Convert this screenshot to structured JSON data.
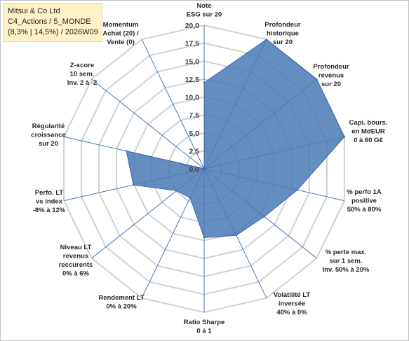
{
  "title_box": {
    "line1": "Mitsui & Co Ltd",
    "line2": "C4_Actions / 5_MONDE",
    "line3": "(8,3% | 14,5%) / 2026W09"
  },
  "colors": {
    "fill": "#4a7ab5",
    "stroke": "#3a66a8",
    "spoke": "#4a7ab5",
    "grid": "#d0d0d0",
    "title_bg": "#fff2c6"
  },
  "chart_data": {
    "type": "radar",
    "rmin": 0,
    "rmax": 20,
    "tick_step": 2.5,
    "tick_labels": [
      "0,0",
      "2,5",
      "5,0",
      "7,5",
      "10,0",
      "12,5",
      "15,0",
      "17,5",
      "20,0"
    ],
    "axes": [
      {
        "label": [
          "Note",
          "ESG sur 20"
        ],
        "value": 12
      },
      {
        "label": [
          "Profondeur",
          "historique",
          "sur 20"
        ],
        "value": 20
      },
      {
        "label": [
          "Profondeur",
          "revenus",
          "sur 20"
        ],
        "value": 20
      },
      {
        "label": [
          "Capi. bours.",
          "en MdEUR",
          "0 à 60 G€"
        ],
        "value": 20
      },
      {
        "label": [
          "% perfo 1A",
          "positive",
          "50% à 80%"
        ],
        "value": 13.3
      },
      {
        "label": [
          "% perte max.",
          "sur 1 sem.",
          "Inv. 50% à 20%"
        ],
        "value": 10.7
      },
      {
        "label": [
          "Volatilité LT",
          "inversée",
          "40% à 0%"
        ],
        "value": 10.3
      },
      {
        "label": [
          "Ratio Sharpe",
          "0 à 1"
        ],
        "value": 9.6
      },
      {
        "label": [
          "Rendement LT",
          "0% à 20%"
        ],
        "value": 4.5
      },
      {
        "label": [
          "Niveau LT",
          "revenus",
          "reccurents",
          "0% à 6%"
        ],
        "value": 4.9
      },
      {
        "label": [
          "Perfo. LT",
          "vs index",
          "-8% à 12%"
        ],
        "value": 10.1
      },
      {
        "label": [
          "Régularité",
          "croissance",
          "sur 20"
        ],
        "value": 11.1
      },
      {
        "label": [
          "Z-score",
          "10 sem.",
          "Inv. 2 à -2"
        ],
        "value": 0
      },
      {
        "label": [
          "Momentum",
          "Achat (20) /",
          "Vente (0)"
        ],
        "value": 0
      }
    ]
  }
}
